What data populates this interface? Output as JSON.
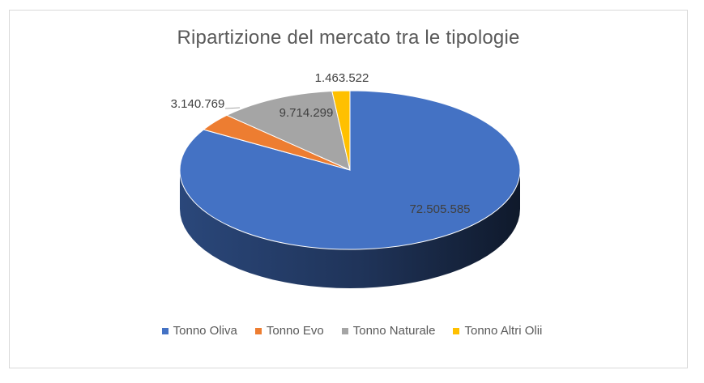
{
  "chart_data": {
    "type": "pie",
    "title": "Ripartizione del mercato tra le tipologie",
    "categories": [
      "Tonno Oliva",
      "Tonno Evo",
      "Tonno Naturale",
      "Tonno Altri Olii"
    ],
    "values": [
      72505585,
      3140769,
      9714299,
      1463522
    ],
    "value_labels": [
      "72.505.585",
      "3.140.769",
      "9.714.299",
      "1.463.522"
    ],
    "colors": [
      "#4472c4",
      "#ed7d31",
      "#a5a5a5",
      "#ffc000"
    ],
    "legend_position": "bottom",
    "style": "3d"
  }
}
